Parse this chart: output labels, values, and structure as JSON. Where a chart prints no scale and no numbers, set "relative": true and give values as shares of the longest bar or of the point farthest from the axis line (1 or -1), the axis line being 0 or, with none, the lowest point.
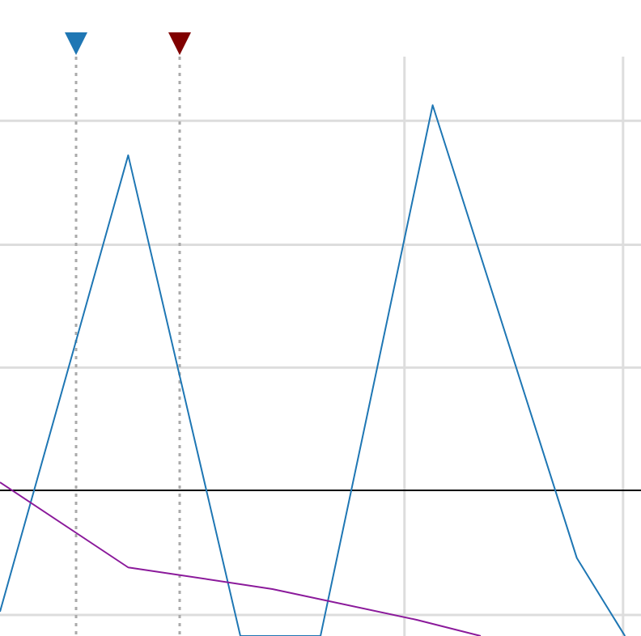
{
  "chart_data": {
    "type": "line",
    "relative": true,
    "grid": true,
    "marker": "none",
    "line_style": "solid",
    "categories": [
      null,
      null,
      null,
      null,
      null,
      null,
      null,
      null,
      null,
      null,
      null,
      null,
      null,
      null,
      null,
      null,
      null,
      null,
      null,
      null,
      null,
      null,
      null,
      null,
      null,
      null,
      null,
      null,
      null,
      null,
      null,
      null,
      null,
      null,
      null,
      null,
      null,
      null,
      null,
      null,
      null
    ],
    "series": [
      {
        "color": "#1f77b4",
        "values": [
          -0.315,
          null,
          null,
          null,
          null,
          null,
          null,
          null,
          0.87,
          null,
          null,
          null,
          null,
          null,
          null,
          -0.378,
          null,
          null,
          null,
          null,
          -0.378,
          null,
          null,
          null,
          null,
          null,
          null,
          1,
          null,
          null,
          null,
          null,
          null,
          null,
          null,
          null,
          -0.176,
          null,
          null,
          -0.378,
          null
        ]
      },
      {
        "color": "#8b1a9b",
        "values": [
          0.021,
          null,
          null,
          null,
          null,
          null,
          null,
          null,
          -0.2,
          null,
          null,
          null,
          null,
          null,
          null,
          null,
          null,
          -0.256,
          null,
          null,
          null,
          null,
          null,
          null,
          null,
          null,
          -0.336,
          null,
          null,
          null,
          -0.378,
          null,
          null,
          null,
          null,
          null,
          null,
          null,
          null,
          null,
          null
        ]
      }
    ]
  }
}
